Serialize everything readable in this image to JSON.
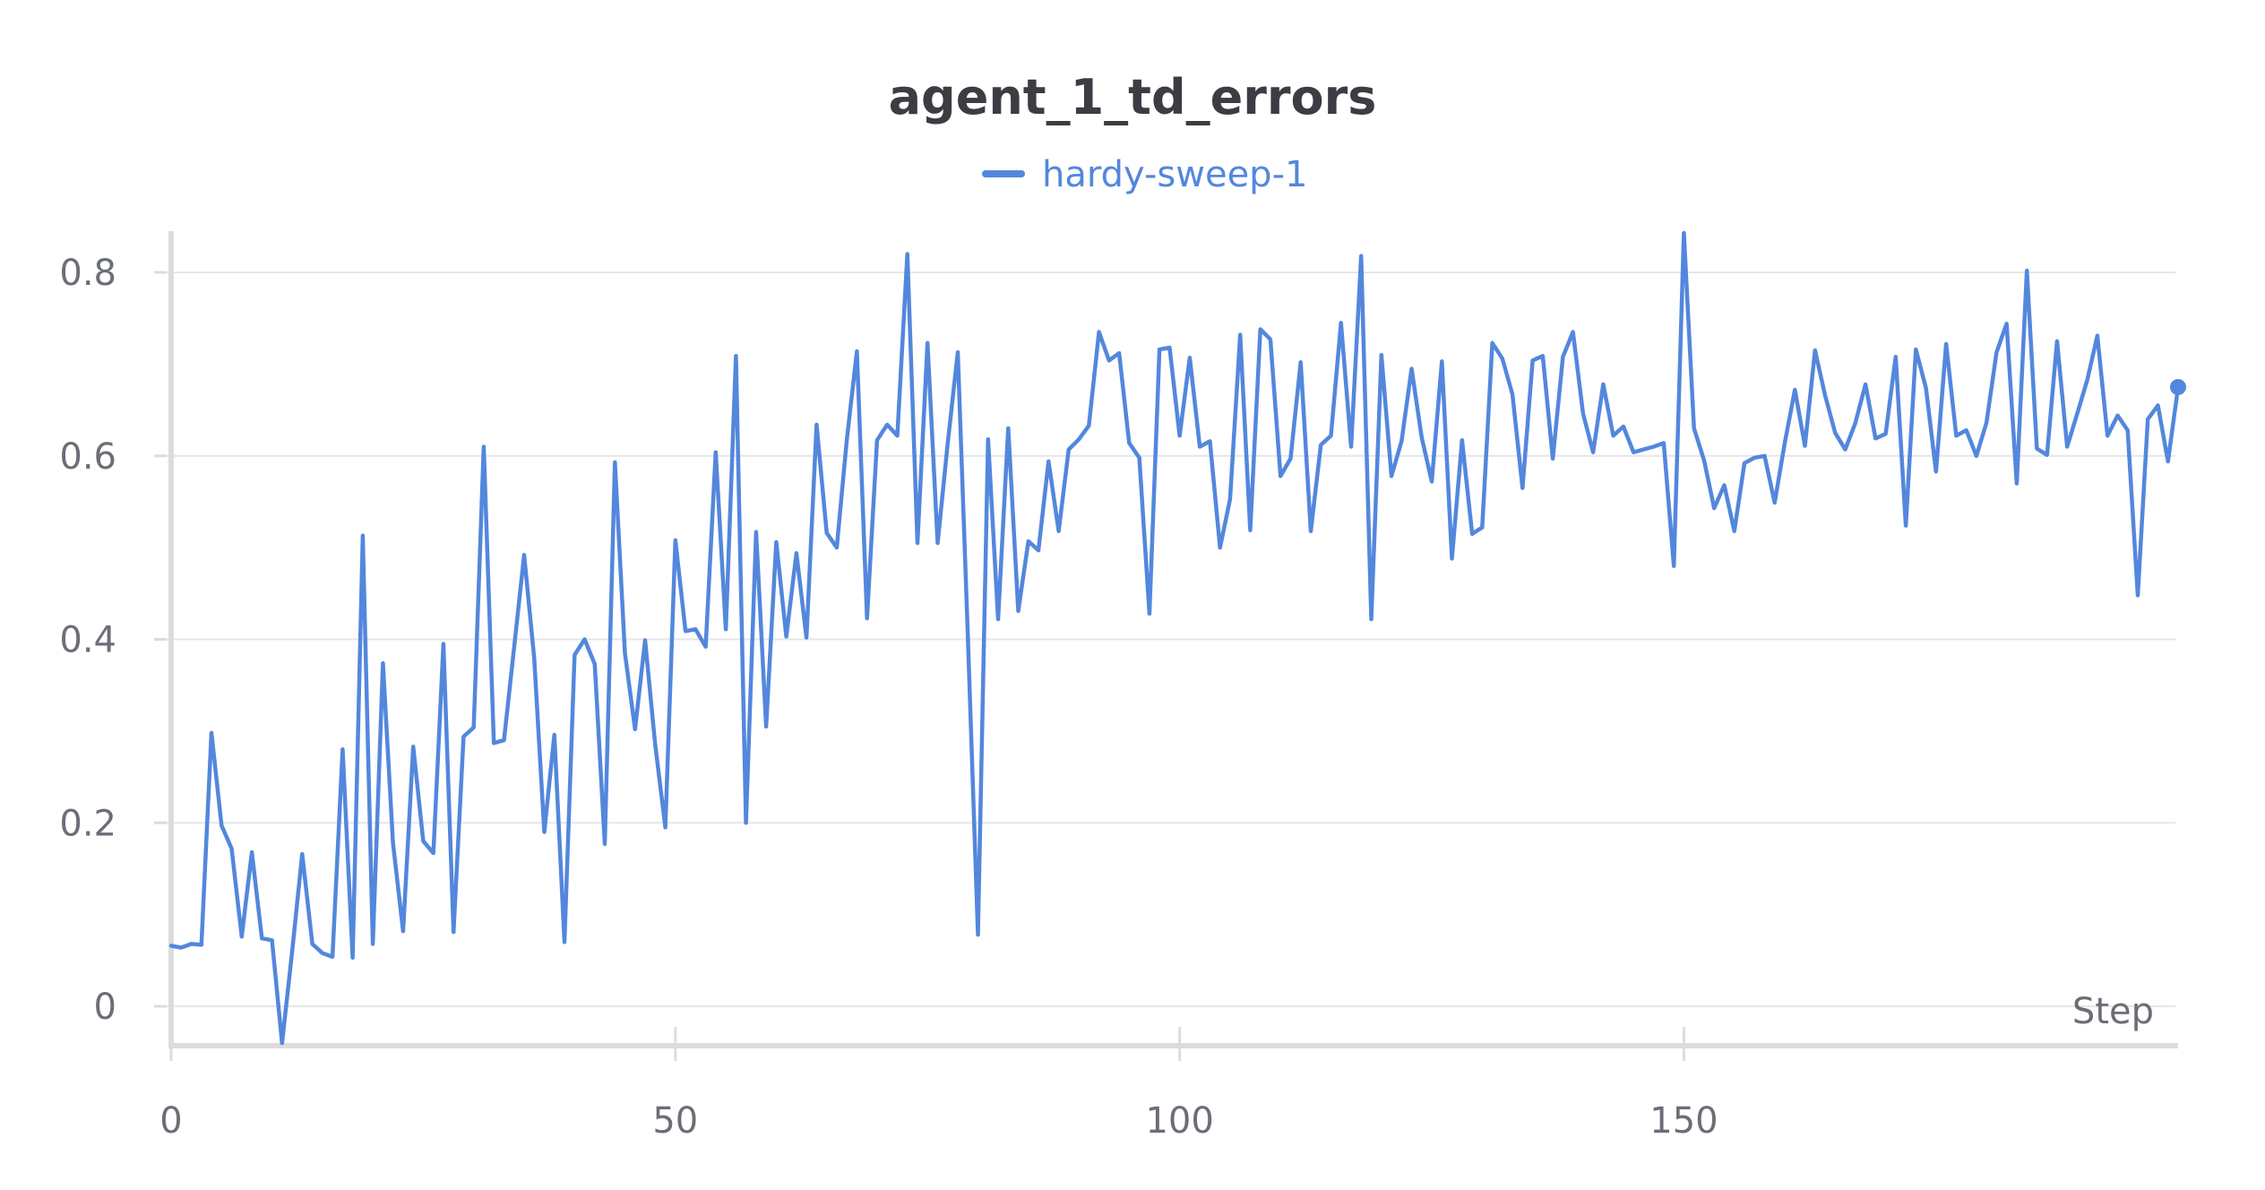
{
  "chart_data": {
    "type": "line",
    "title": "agent_1_td_errors",
    "xlabel": "Step",
    "ylabel": "",
    "xlim": [
      0,
      199
    ],
    "ylim": [
      -0.04,
      0.85
    ],
    "x_ticks": [
      0,
      50,
      100,
      150
    ],
    "y_ticks": [
      0,
      0.2,
      0.4,
      0.6,
      0.8
    ],
    "x_tick_labels": [
      "0",
      "50",
      "100",
      "150"
    ],
    "y_tick_labels": [
      "0",
      "0.2",
      "0.4",
      "0.6",
      "0.8"
    ],
    "grid": true,
    "legend_position": "top-center",
    "series": [
      {
        "name": "hardy-sweep-1",
        "color": "#5387DD",
        "x": [
          0,
          1,
          2,
          3,
          4,
          5,
          6,
          7,
          8,
          9,
          10,
          11,
          12,
          13,
          14,
          15,
          16,
          17,
          18,
          19,
          20,
          21,
          22,
          23,
          24,
          25,
          26,
          27,
          28,
          29,
          30,
          31,
          32,
          33,
          34,
          35,
          36,
          37,
          38,
          39,
          40,
          41,
          42,
          43,
          44,
          45,
          46,
          47,
          48,
          49,
          50,
          51,
          52,
          53,
          54,
          55,
          56,
          57,
          58,
          59,
          60,
          61,
          62,
          63,
          64,
          65,
          66,
          67,
          68,
          69,
          70,
          71,
          72,
          73,
          74,
          75,
          76,
          77,
          78,
          79,
          80,
          81,
          82,
          83,
          84,
          85,
          86,
          87,
          88,
          89,
          90,
          91,
          92,
          93,
          94,
          95,
          96,
          97,
          98,
          99,
          100,
          101,
          102,
          103,
          104,
          105,
          106,
          107,
          108,
          109,
          110,
          111,
          112,
          113,
          114,
          115,
          116,
          117,
          118,
          119,
          120,
          121,
          122,
          123,
          124,
          125,
          126,
          127,
          128,
          129,
          130,
          131,
          132,
          133,
          134,
          135,
          136,
          137,
          138,
          139,
          140,
          141,
          142,
          143,
          144,
          145,
          146,
          147,
          148,
          149,
          150,
          151,
          152,
          153,
          154,
          155,
          156,
          157,
          158,
          159,
          160,
          161,
          162,
          163,
          164,
          165,
          166,
          167,
          168,
          169,
          170,
          171,
          172,
          173,
          174,
          175,
          176,
          177,
          178,
          179,
          180,
          181,
          182,
          183,
          184,
          185,
          186,
          187,
          188,
          189,
          190,
          191,
          192,
          193,
          194,
          195,
          196,
          197,
          198,
          199
        ],
        "values": [
          0.066,
          0.064,
          0.068,
          0.067,
          0.298,
          0.197,
          0.172,
          0.076,
          0.168,
          0.074,
          0.072,
          -0.04,
          0.06,
          0.166,
          0.068,
          0.058,
          0.054,
          0.28,
          0.053,
          0.513,
          0.068,
          0.374,
          0.178,
          0.082,
          0.283,
          0.18,
          0.167,
          0.395,
          0.081,
          0.294,
          0.304,
          0.61,
          0.287,
          0.29,
          0.39,
          0.492,
          0.38,
          0.19,
          0.296,
          0.07,
          0.383,
          0.4,
          0.373,
          0.177,
          0.593,
          0.385,
          0.302,
          0.399,
          0.285,
          0.195,
          0.508,
          0.409,
          0.411,
          0.392,
          0.604,
          0.411,
          0.709,
          0.2,
          0.517,
          0.305,
          0.506,
          0.403,
          0.494,
          0.402,
          0.634,
          0.516,
          0.5,
          0.618,
          0.714,
          0.423,
          0.617,
          0.634,
          0.622,
          0.82,
          0.505,
          0.723,
          0.505,
          0.613,
          0.713,
          0.404,
          0.078,
          0.618,
          0.422,
          0.63,
          0.431,
          0.507,
          0.497,
          0.594,
          0.518,
          0.607,
          0.618,
          0.633,
          0.735,
          0.704,
          0.712,
          0.614,
          0.598,
          0.428,
          0.716,
          0.718,
          0.622,
          0.707,
          0.61,
          0.616,
          0.5,
          0.553,
          0.732,
          0.519,
          0.738,
          0.727,
          0.578,
          0.597,
          0.702,
          0.518,
          0.612,
          0.622,
          0.745,
          0.61,
          0.818,
          0.422,
          0.71,
          0.578,
          0.616,
          0.695,
          0.62,
          0.572,
          0.703,
          0.488,
          0.617,
          0.515,
          0.522,
          0.723,
          0.706,
          0.667,
          0.565,
          0.704,
          0.709,
          0.597,
          0.708,
          0.735,
          0.646,
          0.604,
          0.678,
          0.622,
          0.632,
          0.604,
          0.607,
          0.61,
          0.614,
          0.48,
          0.843,
          0.63,
          0.595,
          0.543,
          0.568,
          0.518,
          0.592,
          0.598,
          0.6,
          0.549,
          0.614,
          0.672,
          0.611,
          0.715,
          0.666,
          0.625,
          0.607,
          0.636,
          0.678,
          0.619,
          0.624,
          0.708,
          0.524,
          0.716,
          0.674,
          0.583,
          0.722,
          0.622,
          0.628,
          0.6,
          0.636,
          0.713,
          0.744,
          0.57,
          0.802,
          0.608,
          0.601,
          0.725,
          0.61,
          0.646,
          0.683,
          0.731,
          0.622,
          0.644,
          0.628,
          0.448,
          0.64,
          0.655,
          0.594,
          0.675
        ]
      }
    ]
  }
}
